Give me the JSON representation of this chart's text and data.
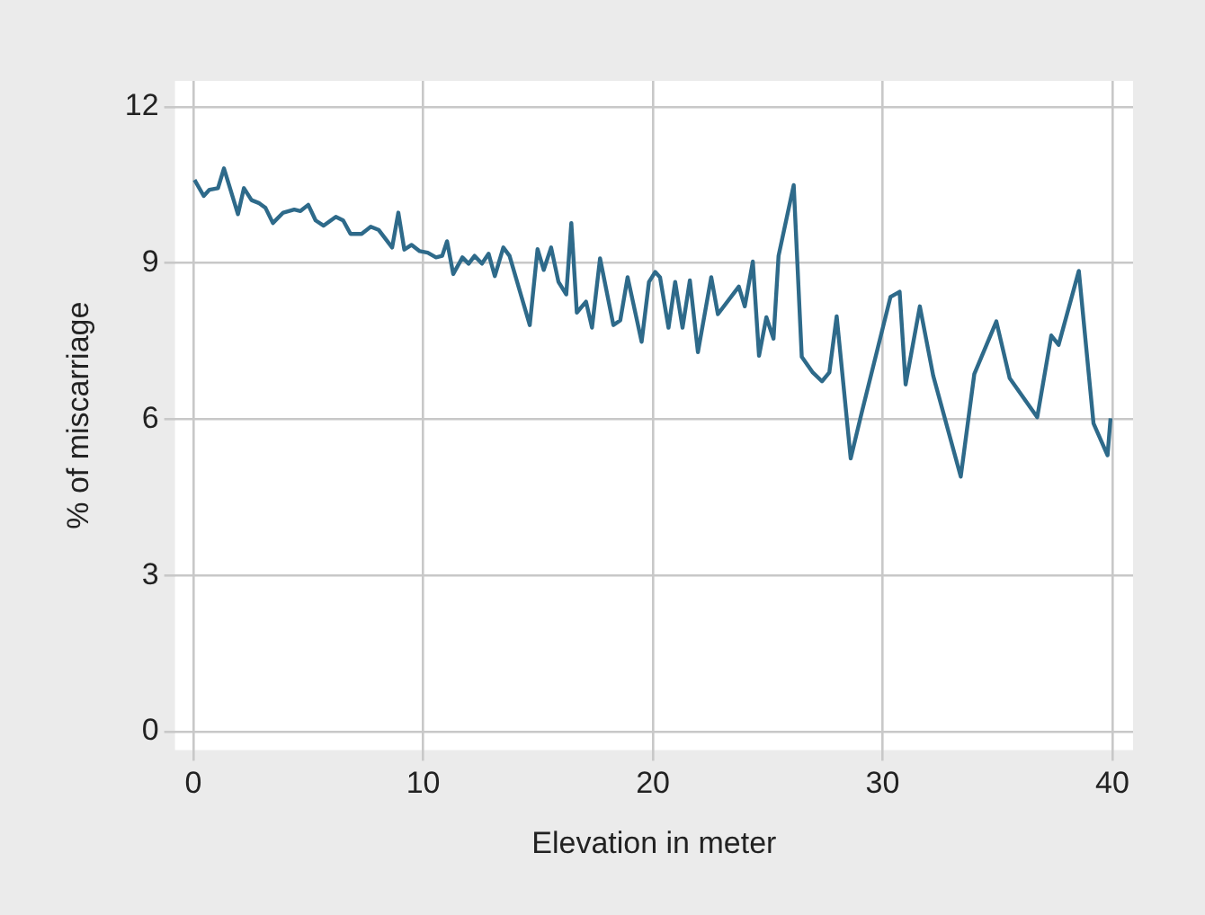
{
  "chart_data": {
    "type": "line",
    "xlabel": "Elevation in meter",
    "ylabel": "% of miscarriage",
    "x": [
      0.05,
      0.45,
      0.7,
      1.07,
      1.33,
      1.94,
      2.2,
      2.53,
      2.87,
      3.14,
      3.46,
      3.91,
      4.39,
      4.66,
      5.0,
      5.32,
      5.67,
      6.2,
      6.52,
      6.84,
      7.32,
      7.72,
      8.06,
      8.65,
      8.92,
      9.18,
      9.5,
      9.85,
      10.2,
      10.56,
      10.83,
      11.04,
      11.31,
      11.71,
      11.98,
      12.24,
      12.56,
      12.85,
      13.12,
      13.49,
      13.76,
      14.64,
      14.98,
      15.25,
      15.57,
      15.89,
      16.23,
      16.45,
      16.69,
      17.09,
      17.35,
      17.7,
      18.28,
      18.58,
      18.9,
      19.51,
      19.83,
      20.1,
      20.31,
      20.68,
      20.97,
      21.29,
      21.61,
      21.96,
      22.54,
      22.83,
      23.74,
      24.0,
      24.35,
      24.62,
      24.94,
      25.25,
      25.47,
      26.13,
      26.48,
      26.96,
      27.36,
      27.68,
      28.0,
      28.61,
      29.09,
      30.34,
      30.74,
      31.0,
      31.62,
      32.2,
      33.4,
      33.99,
      34.95,
      35.53,
      36.73,
      37.34,
      37.66,
      38.54,
      39.18,
      39.79,
      39.92
    ],
    "series": [
      {
        "color": "#2e6a8a",
        "values": [
          10.6,
          10.29,
          10.41,
          10.44,
          10.82,
          9.94,
          10.44,
          10.21,
          10.15,
          10.06,
          9.77,
          9.97,
          10.03,
          10.0,
          10.12,
          9.82,
          9.72,
          9.89,
          9.82,
          9.56,
          9.56,
          9.7,
          9.64,
          9.3,
          9.97,
          9.26,
          9.35,
          9.23,
          9.2,
          9.11,
          9.14,
          9.42,
          8.79,
          9.11,
          8.99,
          9.14,
          8.99,
          9.18,
          8.75,
          9.3,
          9.14,
          7.81,
          9.27,
          8.87,
          9.3,
          8.64,
          8.4,
          9.77,
          8.05,
          8.26,
          7.76,
          9.09,
          7.81,
          7.9,
          8.73,
          7.49,
          8.64,
          8.83,
          8.73,
          7.76,
          8.64,
          7.76,
          8.67,
          7.29,
          8.73,
          8.02,
          8.55,
          8.17,
          9.03,
          7.22,
          7.96,
          7.55,
          9.14,
          10.5,
          7.2,
          6.9,
          6.73,
          6.9,
          7.98,
          5.25,
          6.13,
          8.35,
          8.45,
          6.67,
          8.17,
          6.84,
          4.9,
          6.87,
          7.88,
          6.79,
          6.04,
          7.61,
          7.43,
          8.85,
          5.92,
          5.31,
          6.02
        ]
      }
    ],
    "xlim": [
      -0.8,
      40.9
    ],
    "xticks": [
      0,
      10,
      20,
      30,
      40
    ],
    "ylim": [
      -0.35,
      12.5
    ],
    "yticks": [
      0,
      3,
      6,
      9,
      12
    ],
    "grid": true,
    "legend": false,
    "marker": "none",
    "line_style": "solid"
  }
}
